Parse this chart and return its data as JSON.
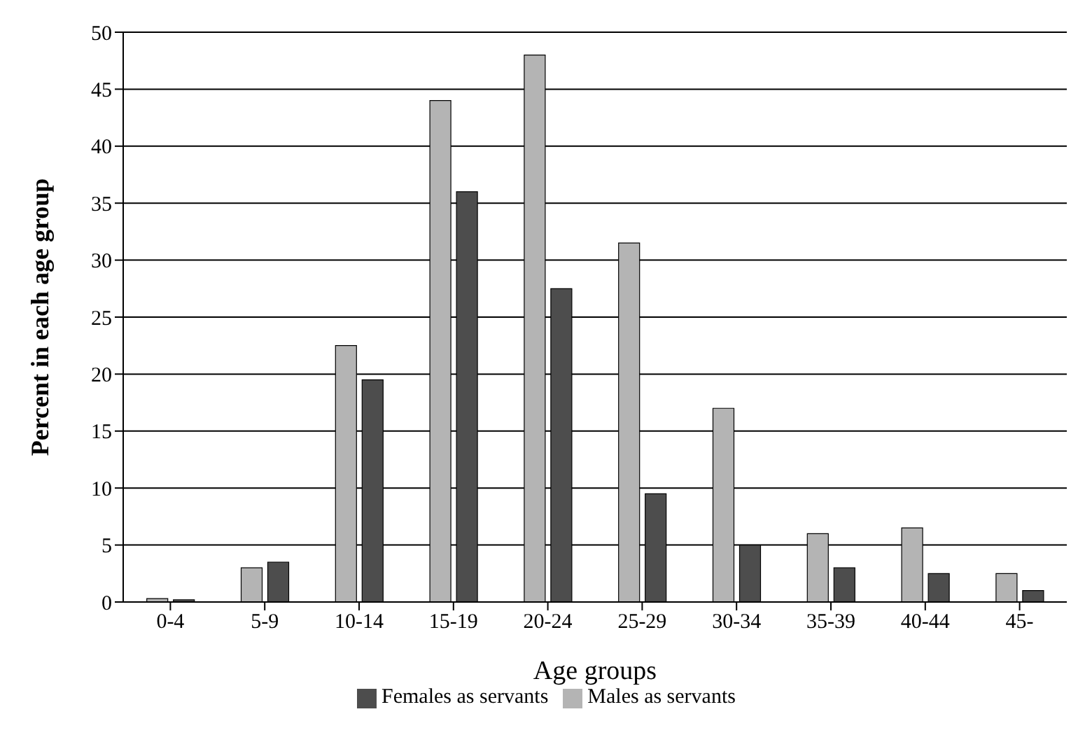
{
  "chart_data": {
    "type": "bar",
    "xlabel": "Age groups",
    "ylabel": "Percent in each age group",
    "categories": [
      "0-4",
      "5-9",
      "10-14",
      "15-19",
      "20-24",
      "25-29",
      "30-34",
      "35-39",
      "40-44",
      "45-"
    ],
    "series": [
      {
        "name": "Males as servants",
        "color": "#b4b4b4",
        "values": [
          0.3,
          3,
          22.5,
          44,
          48,
          31.5,
          17,
          6,
          6.5,
          2.5
        ]
      },
      {
        "name": "Females as servants",
        "color": "#4d4d4d",
        "values": [
          0.2,
          3.5,
          19.5,
          36,
          27.5,
          9.5,
          5,
          3,
          2.5,
          1
        ]
      }
    ],
    "ylim": [
      0,
      50
    ],
    "yticks": [
      0,
      5,
      10,
      15,
      20,
      25,
      30,
      35,
      40,
      45,
      50
    ],
    "grid": "y",
    "legend": "bottom"
  }
}
